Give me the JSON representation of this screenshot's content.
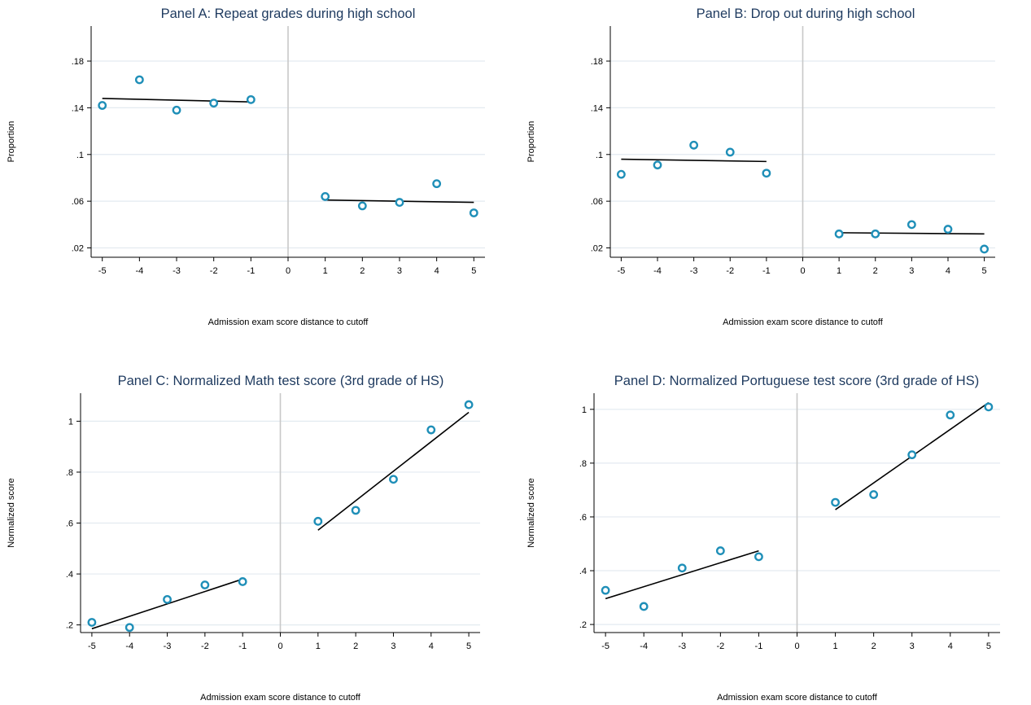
{
  "chart_data": [
    {
      "type": "scatter",
      "title": "Panel A: Repeat grades during high school",
      "xlabel": "Admission exam score distance to cutoff",
      "ylabel": "Proportion",
      "x_ticks": [
        "-5",
        "-4",
        "-3",
        "-2",
        "-1",
        "0",
        "1",
        "2",
        "3",
        "4",
        "5"
      ],
      "y_ticks": [
        ".02",
        ".06",
        ".1",
        ".14",
        ".18"
      ],
      "xlim": [
        -5.3,
        5.3
      ],
      "ylim": [
        0.012,
        0.21
      ],
      "cutoff": 0,
      "grid": true,
      "marker_color": "#1f8fb8",
      "points": {
        "x": [
          -5,
          -4,
          -3,
          -2,
          -1,
          1,
          2,
          3,
          4,
          5
        ],
        "y": [
          0.142,
          0.164,
          0.138,
          0.144,
          0.147,
          0.064,
          0.056,
          0.059,
          0.075,
          0.05
        ]
      },
      "fit_lines": [
        {
          "x": [
            -5,
            -1
          ],
          "y": [
            0.148,
            0.145
          ]
        },
        {
          "x": [
            1,
            5
          ],
          "y": [
            0.061,
            0.059
          ]
        }
      ]
    },
    {
      "type": "scatter",
      "title": "Panel B: Drop out during high school",
      "xlabel": "Admission exam score distance to cutoff",
      "ylabel": "Proportion",
      "x_ticks": [
        "-5",
        "-4",
        "-3",
        "-2",
        "-1",
        "0",
        "1",
        "2",
        "3",
        "4",
        "5"
      ],
      "y_ticks": [
        ".02",
        ".06",
        ".1",
        ".14",
        ".18"
      ],
      "xlim": [
        -5.3,
        5.3
      ],
      "ylim": [
        0.012,
        0.21
      ],
      "cutoff": 0,
      "grid": true,
      "marker_color": "#1f8fb8",
      "points": {
        "x": [
          -5,
          -4,
          -3,
          -2,
          -1,
          1,
          2,
          3,
          4,
          5
        ],
        "y": [
          0.083,
          0.091,
          0.108,
          0.102,
          0.084,
          0.032,
          0.032,
          0.04,
          0.036,
          0.019
        ]
      },
      "fit_lines": [
        {
          "x": [
            -5,
            -1
          ],
          "y": [
            0.096,
            0.094
          ]
        },
        {
          "x": [
            1,
            5
          ],
          "y": [
            0.033,
            0.032
          ]
        }
      ]
    },
    {
      "type": "scatter",
      "title": "Panel C: Normalized Math test score (3rd grade of HS)",
      "xlabel": "Admission exam score distance to cutoff",
      "ylabel": "Normalized score",
      "x_ticks": [
        "-5",
        "-4",
        "-3",
        "-2",
        "-1",
        "0",
        "1",
        "2",
        "3",
        "4",
        "5"
      ],
      "y_ticks": [
        ".2",
        ".4",
        ".6",
        ".8",
        "1"
      ],
      "xlim": [
        -5.3,
        5.3
      ],
      "ylim": [
        0.17,
        1.11
      ],
      "cutoff": 0,
      "grid": true,
      "marker_color": "#1f8fb8",
      "points": {
        "x": [
          -5,
          -4,
          -3,
          -2,
          -1,
          1,
          2,
          3,
          4,
          5
        ],
        "y": [
          0.21,
          0.19,
          0.3,
          0.357,
          0.37,
          0.607,
          0.65,
          0.772,
          0.966,
          1.065
        ]
      },
      "fit_lines": [
        {
          "x": [
            -5,
            -1
          ],
          "y": [
            0.185,
            0.38
          ]
        },
        {
          "x": [
            1,
            5
          ],
          "y": [
            0.572,
            1.035
          ]
        }
      ]
    },
    {
      "type": "scatter",
      "title": "Panel D: Normalized Portuguese test score (3rd grade of HS)",
      "xlabel": "Admission exam score distance to cutoff",
      "ylabel": "Normalized score",
      "x_ticks": [
        "-5",
        "-4",
        "-3",
        "-2",
        "-1",
        "0",
        "1",
        "2",
        "3",
        "4",
        "5"
      ],
      "y_ticks": [
        ".2",
        ".4",
        ".6",
        ".8",
        "1"
      ],
      "xlim": [
        -5.3,
        5.3
      ],
      "ylim": [
        0.17,
        1.06
      ],
      "cutoff": 0,
      "grid": true,
      "marker_color": "#1f8fb8",
      "points": {
        "x": [
          -5,
          -4,
          -3,
          -2,
          -1,
          1,
          2,
          3,
          4,
          5
        ],
        "y": [
          0.327,
          0.267,
          0.41,
          0.474,
          0.452,
          0.654,
          0.683,
          0.831,
          0.979,
          1.009
        ]
      },
      "fit_lines": [
        {
          "x": [
            -5,
            -1
          ],
          "y": [
            0.296,
            0.474
          ]
        },
        {
          "x": [
            1,
            5
          ],
          "y": [
            0.627,
            1.025
          ]
        }
      ]
    }
  ]
}
